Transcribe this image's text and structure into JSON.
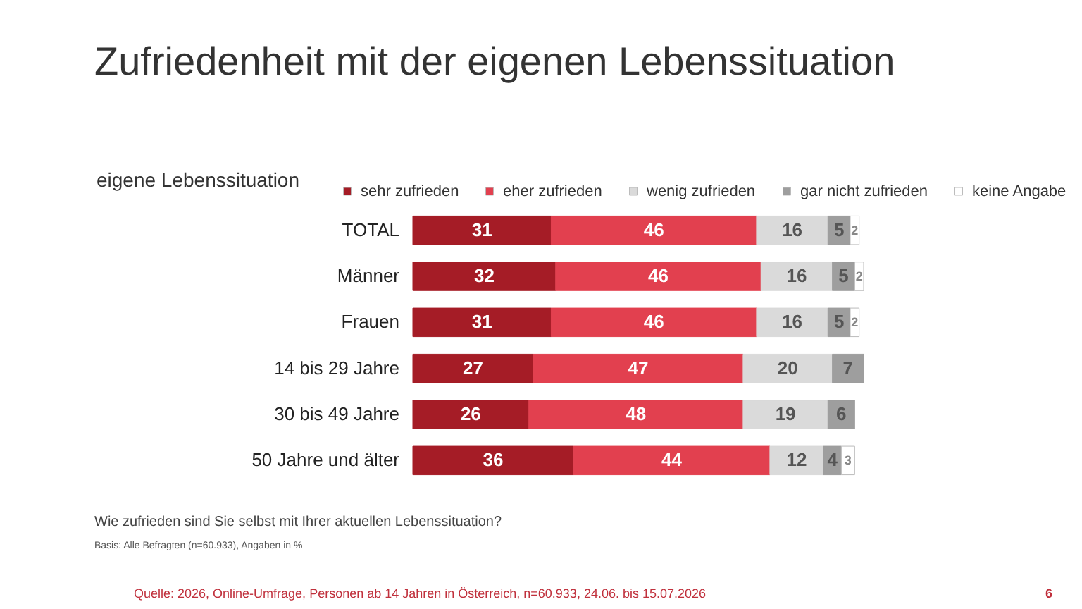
{
  "chart_data": {
    "type": "bar",
    "orientation": "horizontal",
    "stacked": true,
    "title": "Zufriedenheit mit der eigenen Lebenssituation",
    "ylabel": "eigene Lebenssituation",
    "categories": [
      "TOTAL",
      "Männer",
      "Frauen",
      "14 bis 29 Jahre",
      "30 bis 49 Jahre",
      "50 Jahre und älter"
    ],
    "series": [
      {
        "name": "sehr zufrieden",
        "color": "#a51c26",
        "values": [
          31,
          32,
          31,
          27,
          26,
          36
        ]
      },
      {
        "name": "eher zufrieden",
        "color": "#e2404f",
        "values": [
          46,
          46,
          46,
          47,
          48,
          44
        ]
      },
      {
        "name": "wenig zufrieden",
        "color": "#dadada",
        "values": [
          16,
          16,
          16,
          20,
          19,
          12
        ]
      },
      {
        "name": "gar nicht zufrieden",
        "color": "#9e9e9e",
        "values": [
          5,
          5,
          5,
          7,
          6,
          4
        ]
      },
      {
        "name": "keine Angabe",
        "color": "#ffffff",
        "values": [
          2,
          2,
          2,
          null,
          null,
          3
        ]
      }
    ],
    "tick_labels": "y",
    "data_labels": true,
    "legend": "top",
    "annotations": [
      "Wie zufrieden sind Sie selbst mit Ihrer aktuellen Lebenssituation?",
      "Basis:  Alle Befragten (n=60.933), Angaben in %",
      "Quelle: 2026, Online-Umfrage, Personen ab 14 Jahren in Österreich, n=60.933, 24.06. bis 15.07.2026",
      "6"
    ]
  }
}
